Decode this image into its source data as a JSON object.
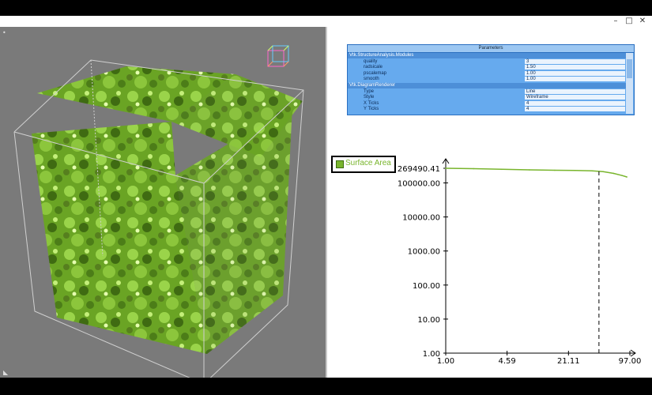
{
  "window": {
    "title": "",
    "buttons": {
      "minimize": "–",
      "maximize": "□",
      "close": "✕"
    }
  },
  "viewport": {
    "background": "#7a7a7a",
    "surface_color": "#7db82f",
    "corner_marker_top": "•",
    "corner_marker_bottom": "◣"
  },
  "parameters": {
    "title": "Parameters",
    "rows": [
      {
        "key": "Vtk.StructureAnalysis.Modules",
        "value": "",
        "group": true
      },
      {
        "key": "quality",
        "value": "3",
        "group": false
      },
      {
        "key": "radsicale",
        "value": "1.50",
        "group": false
      },
      {
        "key": "pscalemap",
        "value": "1.00",
        "group": false
      },
      {
        "key": "smooth",
        "value": "1.00",
        "group": false
      },
      {
        "key": "Vtk.DiagramRenderer",
        "value": "",
        "group": true
      },
      {
        "key": "Type",
        "value": "Line",
        "group": false
      },
      {
        "key": "Style",
        "value": "Wireframe",
        "group": false
      },
      {
        "key": "X Ticks",
        "value": "4",
        "group": false
      },
      {
        "key": "Y Ticks",
        "value": "4",
        "group": false
      }
    ]
  },
  "legend": {
    "label": "Surface Area",
    "color": "#79b52d"
  },
  "chart_data": {
    "type": "line",
    "title": "",
    "xlabel": "",
    "ylabel": "",
    "y_scale": "log",
    "x_scale": "log",
    "x_ticks": [
      "1.00",
      "4.59",
      "21.11",
      "97.00"
    ],
    "y_ticks": [
      "1.00",
      "10.00",
      "100.00",
      "1000.00",
      "10000.00",
      "100000.00",
      "269490.41"
    ],
    "xlim": [
      1.0,
      97.0
    ],
    "ylim": [
      1.0,
      269490.41
    ],
    "series": [
      {
        "name": "Surface Area",
        "color": "#79b52d",
        "x": [
          1.0,
          2.0,
          4.0,
          8.0,
          15.0,
          25.0,
          38.0,
          50.0,
          65.0,
          80.0,
          90.0
        ],
        "y": [
          269490.41,
          262000,
          252000,
          242000,
          236000,
          232000,
          226000,
          214000,
          190000,
          165000,
          150000
        ]
      }
    ],
    "marker_x": 45.0,
    "grid": false
  }
}
